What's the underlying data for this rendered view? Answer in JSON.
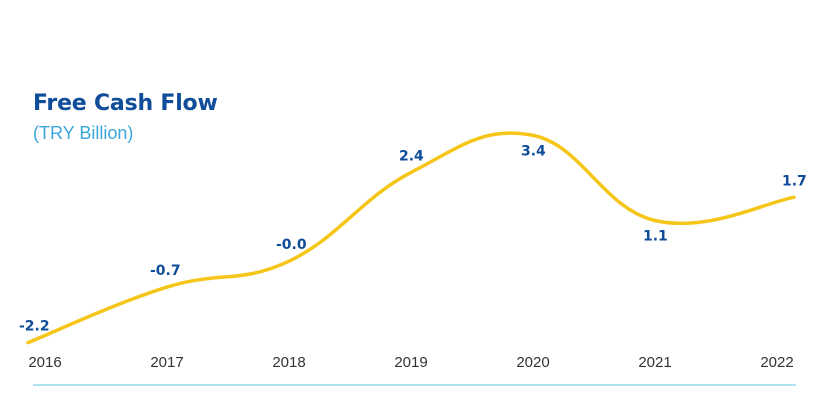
{
  "chart_data": {
    "type": "line",
    "title": "Free Cash Flow",
    "subtitle": "(TRY Billion)",
    "categories": [
      "2016",
      "2017",
      "2018",
      "2019",
      "2020",
      "2021",
      "2022"
    ],
    "series": [
      {
        "values": [
          -2.2,
          -0.7,
          -0.0,
          2.4,
          3.4,
          1.1,
          1.7
        ],
        "labels": [
          "-2.2",
          "-0.7",
          "-0.0",
          "2.4",
          "3.4",
          "1.1",
          "1.7"
        ]
      }
    ],
    "ylim": [
      -2.4,
      3.6
    ],
    "grid": false,
    "legend": "none",
    "colors": {
      "line": "#f5c518",
      "label": "#0f4c99",
      "title": "#0f4c99",
      "subtitle": "#3aa6d9",
      "axis": "#7fd0ea",
      "tick": "#333333"
    }
  }
}
